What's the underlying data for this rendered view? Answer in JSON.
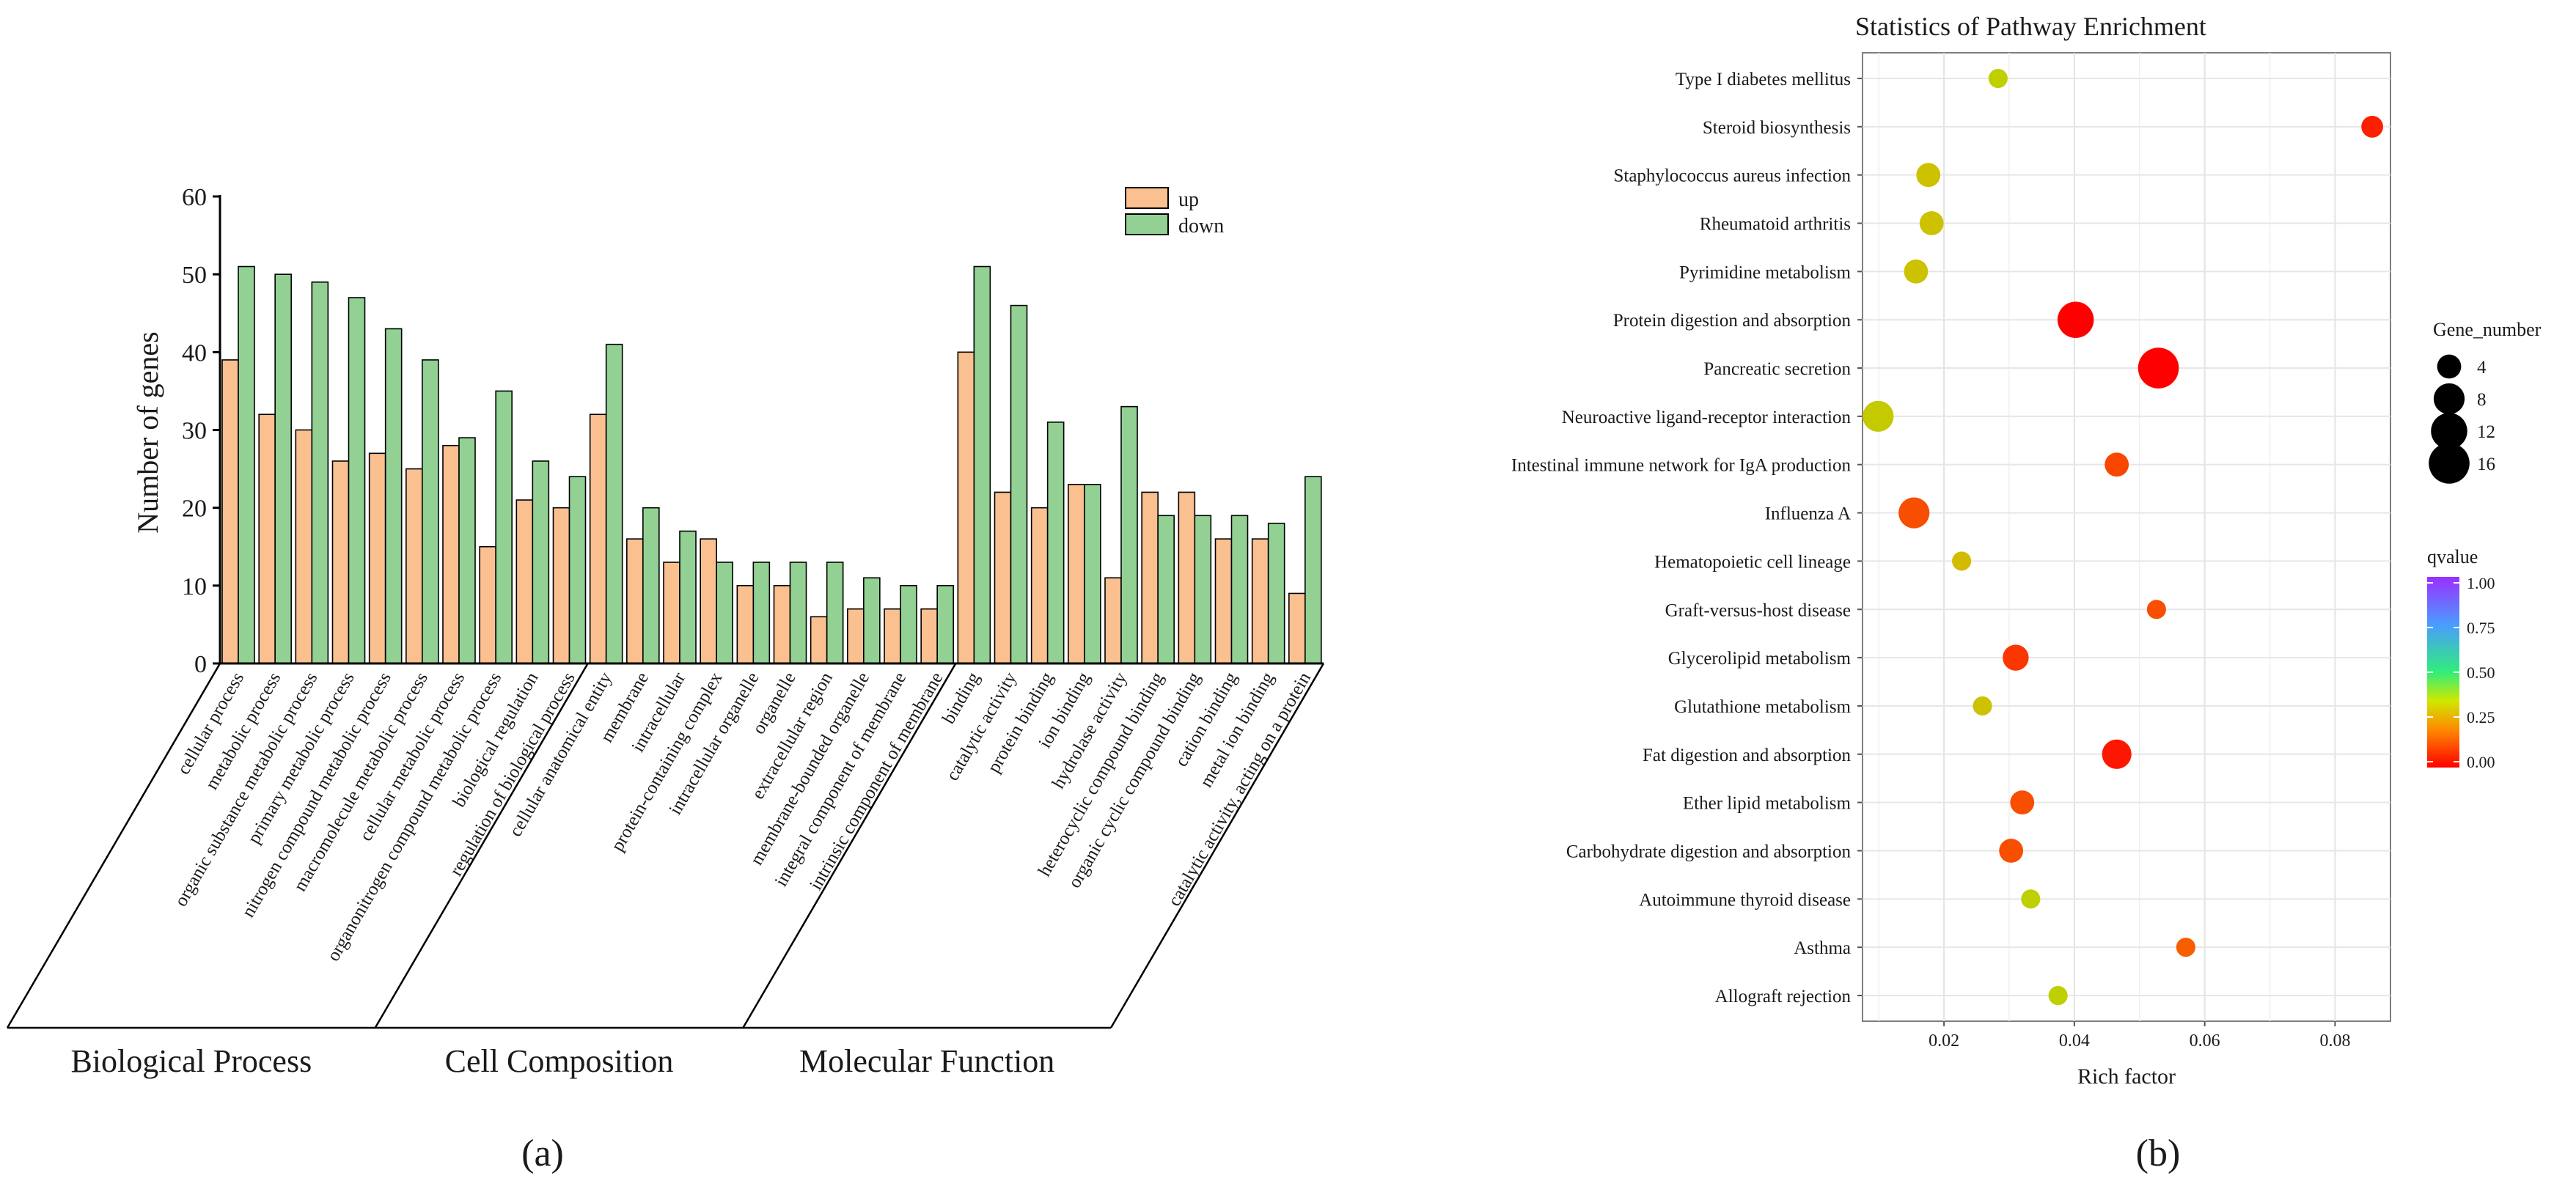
{
  "chart_data": [
    {
      "type": "bar",
      "panel_label": "(a)",
      "ylabel": "Number of genes",
      "ylim": [
        0,
        60
      ],
      "yticks": [
        "0",
        "10",
        "20",
        "30",
        "40",
        "50",
        "60"
      ],
      "legend": {
        "placement": "top-right",
        "entries": [
          "up",
          "down"
        ]
      },
      "colors": {
        "up": "#fac090",
        "down": "#92d193"
      },
      "groups": [
        {
          "name": "Biological Process",
          "start": 0,
          "end": 10
        },
        {
          "name": "Cell Composition",
          "start": 10,
          "end": 20
        },
        {
          "name": "Molecular Function",
          "start": 20,
          "end": 30
        }
      ],
      "categories": [
        "cellular process",
        "metabolic process",
        "organic substance metabolic process",
        "primary metabolic process",
        "nitrogen compound metabolic process",
        "macromolecule metabolic process",
        "cellular metabolic process",
        "organonitrogen compound metabolic process",
        "biological regulation",
        "regulation of biological process",
        "cellular anatomical entity",
        "membrane",
        "intracellular",
        "protein-containing complex",
        "intracellular organelle",
        "organelle",
        "extracellular region",
        "membrane-bounded organelle",
        "integral component of membrane",
        "intrinsic component of membrane",
        "binding",
        "catalytic activity",
        "protein binding",
        "ion binding",
        "hydrolase activity",
        "heterocyclic compound binding",
        "organic cyclic compound binding",
        "cation binding",
        "metal ion binding",
        "catalytic activity, acting on a protein"
      ],
      "series": [
        {
          "name": "up",
          "values": [
            39,
            32,
            30,
            26,
            27,
            25,
            28,
            15,
            21,
            20,
            32,
            16,
            13,
            16,
            10,
            10,
            6,
            7,
            7,
            7,
            40,
            22,
            20,
            23,
            11,
            22,
            22,
            16,
            16,
            9
          ]
        },
        {
          "name": "down",
          "values": [
            51,
            50,
            49,
            47,
            43,
            39,
            29,
            35,
            26,
            24,
            41,
            20,
            17,
            13,
            13,
            13,
            13,
            11,
            10,
            10,
            51,
            46,
            31,
            23,
            33,
            19,
            19,
            19,
            18,
            24
          ]
        }
      ]
    },
    {
      "type": "scatter",
      "panel_label": "(b)",
      "title": "Statistics of Pathway Enrichment",
      "xlabel": "Rich factor",
      "xlim": [
        0.0075,
        0.0885
      ],
      "xticks": [
        0.02,
        0.04,
        0.06,
        0.08
      ],
      "xtick_labels": [
        "0.02",
        "0.04",
        "0.06",
        "0.08"
      ],
      "size_legend_title": "Gene_number",
      "size_legend": [
        {
          "label": "4",
          "value": 4
        },
        {
          "label": "8",
          "value": 8
        },
        {
          "label": "12",
          "value": 12
        },
        {
          "label": "16",
          "value": 16
        }
      ],
      "color_legend_title": "qvalue",
      "color_ticks": [
        "1.00",
        "0.75",
        "0.50",
        "0.25",
        "0.00"
      ],
      "points": [
        {
          "pathway": "Type I diabetes mellitus",
          "rich_factor": 0.0283,
          "gene_number": 2,
          "qvalue": 0.27
        },
        {
          "pathway": "Steroid biosynthesis",
          "rich_factor": 0.0857,
          "gene_number": 3,
          "qvalue": 0.04
        },
        {
          "pathway": "Staphylococcus aureus infection",
          "rich_factor": 0.0176,
          "gene_number": 4,
          "qvalue": 0.25
        },
        {
          "pathway": "Rheumatoid arthritis",
          "rich_factor": 0.0181,
          "gene_number": 4,
          "qvalue": 0.25
        },
        {
          "pathway": "Pyrimidine metabolism",
          "rich_factor": 0.0157,
          "gene_number": 4,
          "qvalue": 0.25
        },
        {
          "pathway": "Protein digestion and absorption",
          "rich_factor": 0.0402,
          "gene_number": 12,
          "qvalue": 0.0
        },
        {
          "pathway": "Pancreatic secretion",
          "rich_factor": 0.0529,
          "gene_number": 16,
          "qvalue": 0.0
        },
        {
          "pathway": "Neuroactive ligand-receptor interaction",
          "rich_factor": 0.0099,
          "gene_number": 8,
          "qvalue": 0.26
        },
        {
          "pathway": "Intestinal immune network for IgA production",
          "rich_factor": 0.0465,
          "gene_number": 4,
          "qvalue": 0.09
        },
        {
          "pathway": "Influenza A",
          "rich_factor": 0.0154,
          "gene_number": 8,
          "qvalue": 0.1
        },
        {
          "pathway": "Hematopoietic cell lineage",
          "rich_factor": 0.0227,
          "gene_number": 2,
          "qvalue": 0.24
        },
        {
          "pathway": "Graft-versus-host disease",
          "rich_factor": 0.0526,
          "gene_number": 2,
          "qvalue": 0.1
        },
        {
          "pathway": "Glycerolipid metabolism",
          "rich_factor": 0.031,
          "gene_number": 5,
          "qvalue": 0.07
        },
        {
          "pathway": "Glutathione metabolism",
          "rich_factor": 0.0259,
          "gene_number": 2,
          "qvalue": 0.25
        },
        {
          "pathway": "Fat digestion and absorption",
          "rich_factor": 0.0465,
          "gene_number": 7,
          "qvalue": 0.03
        },
        {
          "pathway": "Ether lipid metabolism",
          "rich_factor": 0.032,
          "gene_number": 4,
          "qvalue": 0.1
        },
        {
          "pathway": "Carbohydrate digestion and absorption",
          "rich_factor": 0.0303,
          "gene_number": 4,
          "qvalue": 0.1
        },
        {
          "pathway": "Autoimmune thyroid disease",
          "rich_factor": 0.0333,
          "gene_number": 2,
          "qvalue": 0.27
        },
        {
          "pathway": "Asthma",
          "rich_factor": 0.0571,
          "gene_number": 2,
          "qvalue": 0.12
        },
        {
          "pathway": "Allograft rejection",
          "rich_factor": 0.0375,
          "gene_number": 2,
          "qvalue": 0.27
        }
      ]
    }
  ]
}
